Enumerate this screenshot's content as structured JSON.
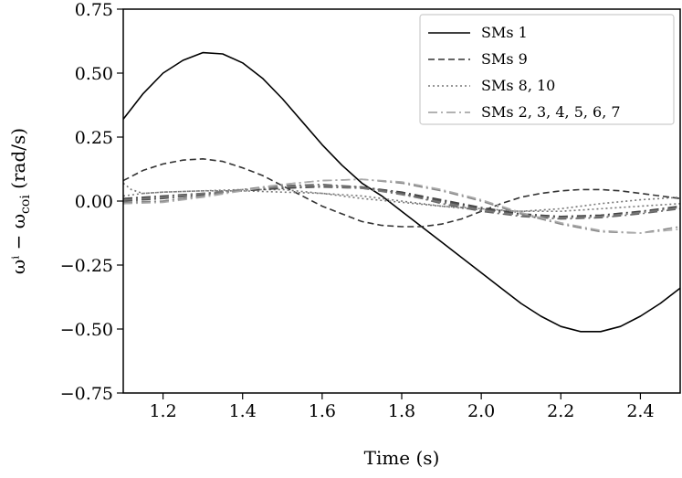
{
  "chart_data": {
    "type": "line",
    "title": "",
    "xlabel": "Time (s)",
    "ylabel": "ωⁱ − ω",
    "ylabel_sub": "coi",
    "ylabel_unit": " (rad/s)",
    "xlim": [
      1.1,
      2.5
    ],
    "ylim": [
      -0.75,
      0.75
    ],
    "xticks": [
      1.2,
      1.4,
      1.6,
      1.8,
      2.0,
      2.2,
      2.4
    ],
    "xtick_labels": [
      "1.2",
      "1.4",
      "1.6",
      "1.8",
      "2.0",
      "2.2",
      "2.4"
    ],
    "yticks": [
      -0.75,
      -0.5,
      -0.25,
      0.0,
      0.25,
      0.5,
      0.75
    ],
    "ytick_labels": [
      "−0.75",
      "−0.50",
      "−0.25",
      "0.00",
      "0.25",
      "0.50",
      "0.75"
    ],
    "legend_position": "top-right",
    "series": [
      {
        "name": "SMs 1",
        "style": "solid",
        "color": "#000000",
        "points": [
          [
            1.1,
            0.32
          ],
          [
            1.15,
            0.42
          ],
          [
            1.2,
            0.5
          ],
          [
            1.25,
            0.55
          ],
          [
            1.3,
            0.58
          ],
          [
            1.35,
            0.575
          ],
          [
            1.4,
            0.54
          ],
          [
            1.45,
            0.48
          ],
          [
            1.5,
            0.4
          ],
          [
            1.55,
            0.31
          ],
          [
            1.6,
            0.22
          ],
          [
            1.65,
            0.14
          ],
          [
            1.7,
            0.07
          ],
          [
            1.75,
            0.02
          ],
          [
            1.8,
            -0.04
          ],
          [
            1.85,
            -0.1
          ],
          [
            1.9,
            -0.16
          ],
          [
            1.95,
            -0.22
          ],
          [
            2.0,
            -0.28
          ],
          [
            2.05,
            -0.34
          ],
          [
            2.1,
            -0.4
          ],
          [
            2.15,
            -0.45
          ],
          [
            2.2,
            -0.49
          ],
          [
            2.25,
            -0.51
          ],
          [
            2.3,
            -0.51
          ],
          [
            2.35,
            -0.49
          ],
          [
            2.4,
            -0.45
          ],
          [
            2.45,
            -0.4
          ],
          [
            2.5,
            -0.34
          ]
        ]
      },
      {
        "name": "SMs 9",
        "style": "dashed",
        "color": "#333333",
        "points": [
          [
            1.1,
            0.08
          ],
          [
            1.15,
            0.12
          ],
          [
            1.2,
            0.145
          ],
          [
            1.25,
            0.16
          ],
          [
            1.3,
            0.165
          ],
          [
            1.35,
            0.155
          ],
          [
            1.4,
            0.13
          ],
          [
            1.45,
            0.1
          ],
          [
            1.5,
            0.06
          ],
          [
            1.55,
            0.02
          ],
          [
            1.6,
            -0.02
          ],
          [
            1.65,
            -0.05
          ],
          [
            1.7,
            -0.08
          ],
          [
            1.75,
            -0.095
          ],
          [
            1.8,
            -0.1
          ],
          [
            1.85,
            -0.1
          ],
          [
            1.9,
            -0.09
          ],
          [
            1.95,
            -0.07
          ],
          [
            2.0,
            -0.04
          ],
          [
            2.05,
            -0.01
          ],
          [
            2.1,
            0.015
          ],
          [
            2.15,
            0.03
          ],
          [
            2.2,
            0.04
          ],
          [
            2.25,
            0.045
          ],
          [
            2.3,
            0.045
          ],
          [
            2.35,
            0.04
          ],
          [
            2.4,
            0.03
          ],
          [
            2.45,
            0.02
          ],
          [
            2.5,
            0.01
          ]
        ]
      },
      {
        "name": "SMs 8, 10",
        "style": "dotted",
        "color": "#777777",
        "points": [
          [
            1.1,
            0.07
          ],
          [
            1.12,
            0.045
          ],
          [
            1.15,
            0.03
          ],
          [
            1.2,
            0.035
          ],
          [
            1.3,
            0.04
          ],
          [
            1.4,
            0.04
          ],
          [
            1.5,
            0.035
          ],
          [
            1.6,
            0.03
          ],
          [
            1.7,
            0.01
          ],
          [
            1.8,
            -0.005
          ],
          [
            1.9,
            -0.02
          ],
          [
            2.0,
            -0.035
          ],
          [
            2.1,
            -0.04
          ],
          [
            2.2,
            -0.03
          ],
          [
            2.3,
            -0.01
          ],
          [
            2.4,
            0.005
          ],
          [
            2.5,
            0.015
          ]
        ],
        "points2": [
          [
            1.1,
            0.02
          ],
          [
            1.15,
            0.03
          ],
          [
            1.2,
            0.035
          ],
          [
            1.3,
            0.04
          ],
          [
            1.4,
            0.045
          ],
          [
            1.5,
            0.045
          ],
          [
            1.6,
            0.03
          ],
          [
            1.7,
            0.02
          ],
          [
            1.8,
            0.0
          ],
          [
            1.9,
            -0.02
          ],
          [
            2.0,
            -0.03
          ],
          [
            2.1,
            -0.04
          ],
          [
            2.2,
            -0.04
          ],
          [
            2.3,
            -0.03
          ],
          [
            2.4,
            -0.02
          ],
          [
            2.5,
            -0.01
          ]
        ]
      },
      {
        "name": "SMs 2, 3, 4, 5, 6, 7",
        "style": "dashdot",
        "color": "#999999",
        "lines": [
          {
            "color": "#555555",
            "points": [
              [
                1.1,
                0.0
              ],
              [
                1.2,
                0.01
              ],
              [
                1.3,
                0.025
              ],
              [
                1.4,
                0.04
              ],
              [
                1.5,
                0.05
              ],
              [
                1.6,
                0.055
              ],
              [
                1.7,
                0.05
              ],
              [
                1.8,
                0.03
              ],
              [
                1.9,
                0.0
              ],
              [
                2.0,
                -0.03
              ],
              [
                2.1,
                -0.055
              ],
              [
                2.2,
                -0.065
              ],
              [
                2.3,
                -0.06
              ],
              [
                2.4,
                -0.045
              ],
              [
                2.5,
                -0.025
              ]
            ]
          },
          {
            "color": "#444444",
            "points": [
              [
                1.1,
                0.01
              ],
              [
                1.2,
                0.02
              ],
              [
                1.3,
                0.03
              ],
              [
                1.4,
                0.04
              ],
              [
                1.5,
                0.05
              ],
              [
                1.6,
                0.06
              ],
              [
                1.7,
                0.055
              ],
              [
                1.8,
                0.035
              ],
              [
                1.9,
                0.005
              ],
              [
                2.0,
                -0.025
              ],
              [
                2.1,
                -0.05
              ],
              [
                2.2,
                -0.06
              ],
              [
                2.3,
                -0.055
              ],
              [
                2.4,
                -0.04
              ],
              [
                2.5,
                -0.02
              ]
            ]
          },
          {
            "color": "#666666",
            "points": [
              [
                1.1,
                -0.01
              ],
              [
                1.2,
                0.0
              ],
              [
                1.3,
                0.02
              ],
              [
                1.4,
                0.045
              ],
              [
                1.5,
                0.06
              ],
              [
                1.6,
                0.065
              ],
              [
                1.7,
                0.055
              ],
              [
                1.8,
                0.03
              ],
              [
                1.9,
                -0.01
              ],
              [
                2.0,
                -0.04
              ],
              [
                2.1,
                -0.06
              ],
              [
                2.2,
                -0.07
              ],
              [
                2.3,
                -0.065
              ],
              [
                2.4,
                -0.05
              ],
              [
                2.5,
                -0.03
              ]
            ]
          },
          {
            "color": "#777777",
            "points": [
              [
                1.1,
                0.005
              ],
              [
                1.2,
                0.015
              ],
              [
                1.3,
                0.03
              ],
              [
                1.4,
                0.045
              ],
              [
                1.5,
                0.055
              ],
              [
                1.6,
                0.06
              ],
              [
                1.7,
                0.05
              ],
              [
                1.8,
                0.025
              ],
              [
                1.9,
                -0.005
              ],
              [
                2.0,
                -0.035
              ],
              [
                2.1,
                -0.055
              ],
              [
                2.2,
                -0.065
              ],
              [
                2.3,
                -0.06
              ],
              [
                2.4,
                -0.045
              ],
              [
                2.5,
                -0.025
              ]
            ]
          },
          {
            "color": "#888888",
            "points": [
              [
                1.1,
                -0.005
              ],
              [
                1.2,
                0.0
              ],
              [
                1.3,
                0.02
              ],
              [
                1.4,
                0.045
              ],
              [
                1.5,
                0.065
              ],
              [
                1.6,
                0.08
              ],
              [
                1.7,
                0.085
              ],
              [
                1.8,
                0.07
              ],
              [
                1.9,
                0.04
              ],
              [
                2.0,
                0.0
              ],
              [
                2.1,
                -0.05
              ],
              [
                2.2,
                -0.09
              ],
              [
                2.3,
                -0.12
              ],
              [
                2.4,
                -0.125
              ],
              [
                2.5,
                -0.1
              ]
            ]
          },
          {
            "color": "#aaaaaa",
            "points": [
              [
                1.1,
                -0.01
              ],
              [
                1.2,
                -0.005
              ],
              [
                1.3,
                0.015
              ],
              [
                1.4,
                0.04
              ],
              [
                1.5,
                0.065
              ],
              [
                1.6,
                0.08
              ],
              [
                1.7,
                0.085
              ],
              [
                1.8,
                0.075
              ],
              [
                1.9,
                0.045
              ],
              [
                2.0,
                0.005
              ],
              [
                2.1,
                -0.045
              ],
              [
                2.2,
                -0.085
              ],
              [
                2.3,
                -0.115
              ],
              [
                2.4,
                -0.125
              ],
              [
                2.5,
                -0.11
              ]
            ]
          }
        ]
      }
    ]
  }
}
